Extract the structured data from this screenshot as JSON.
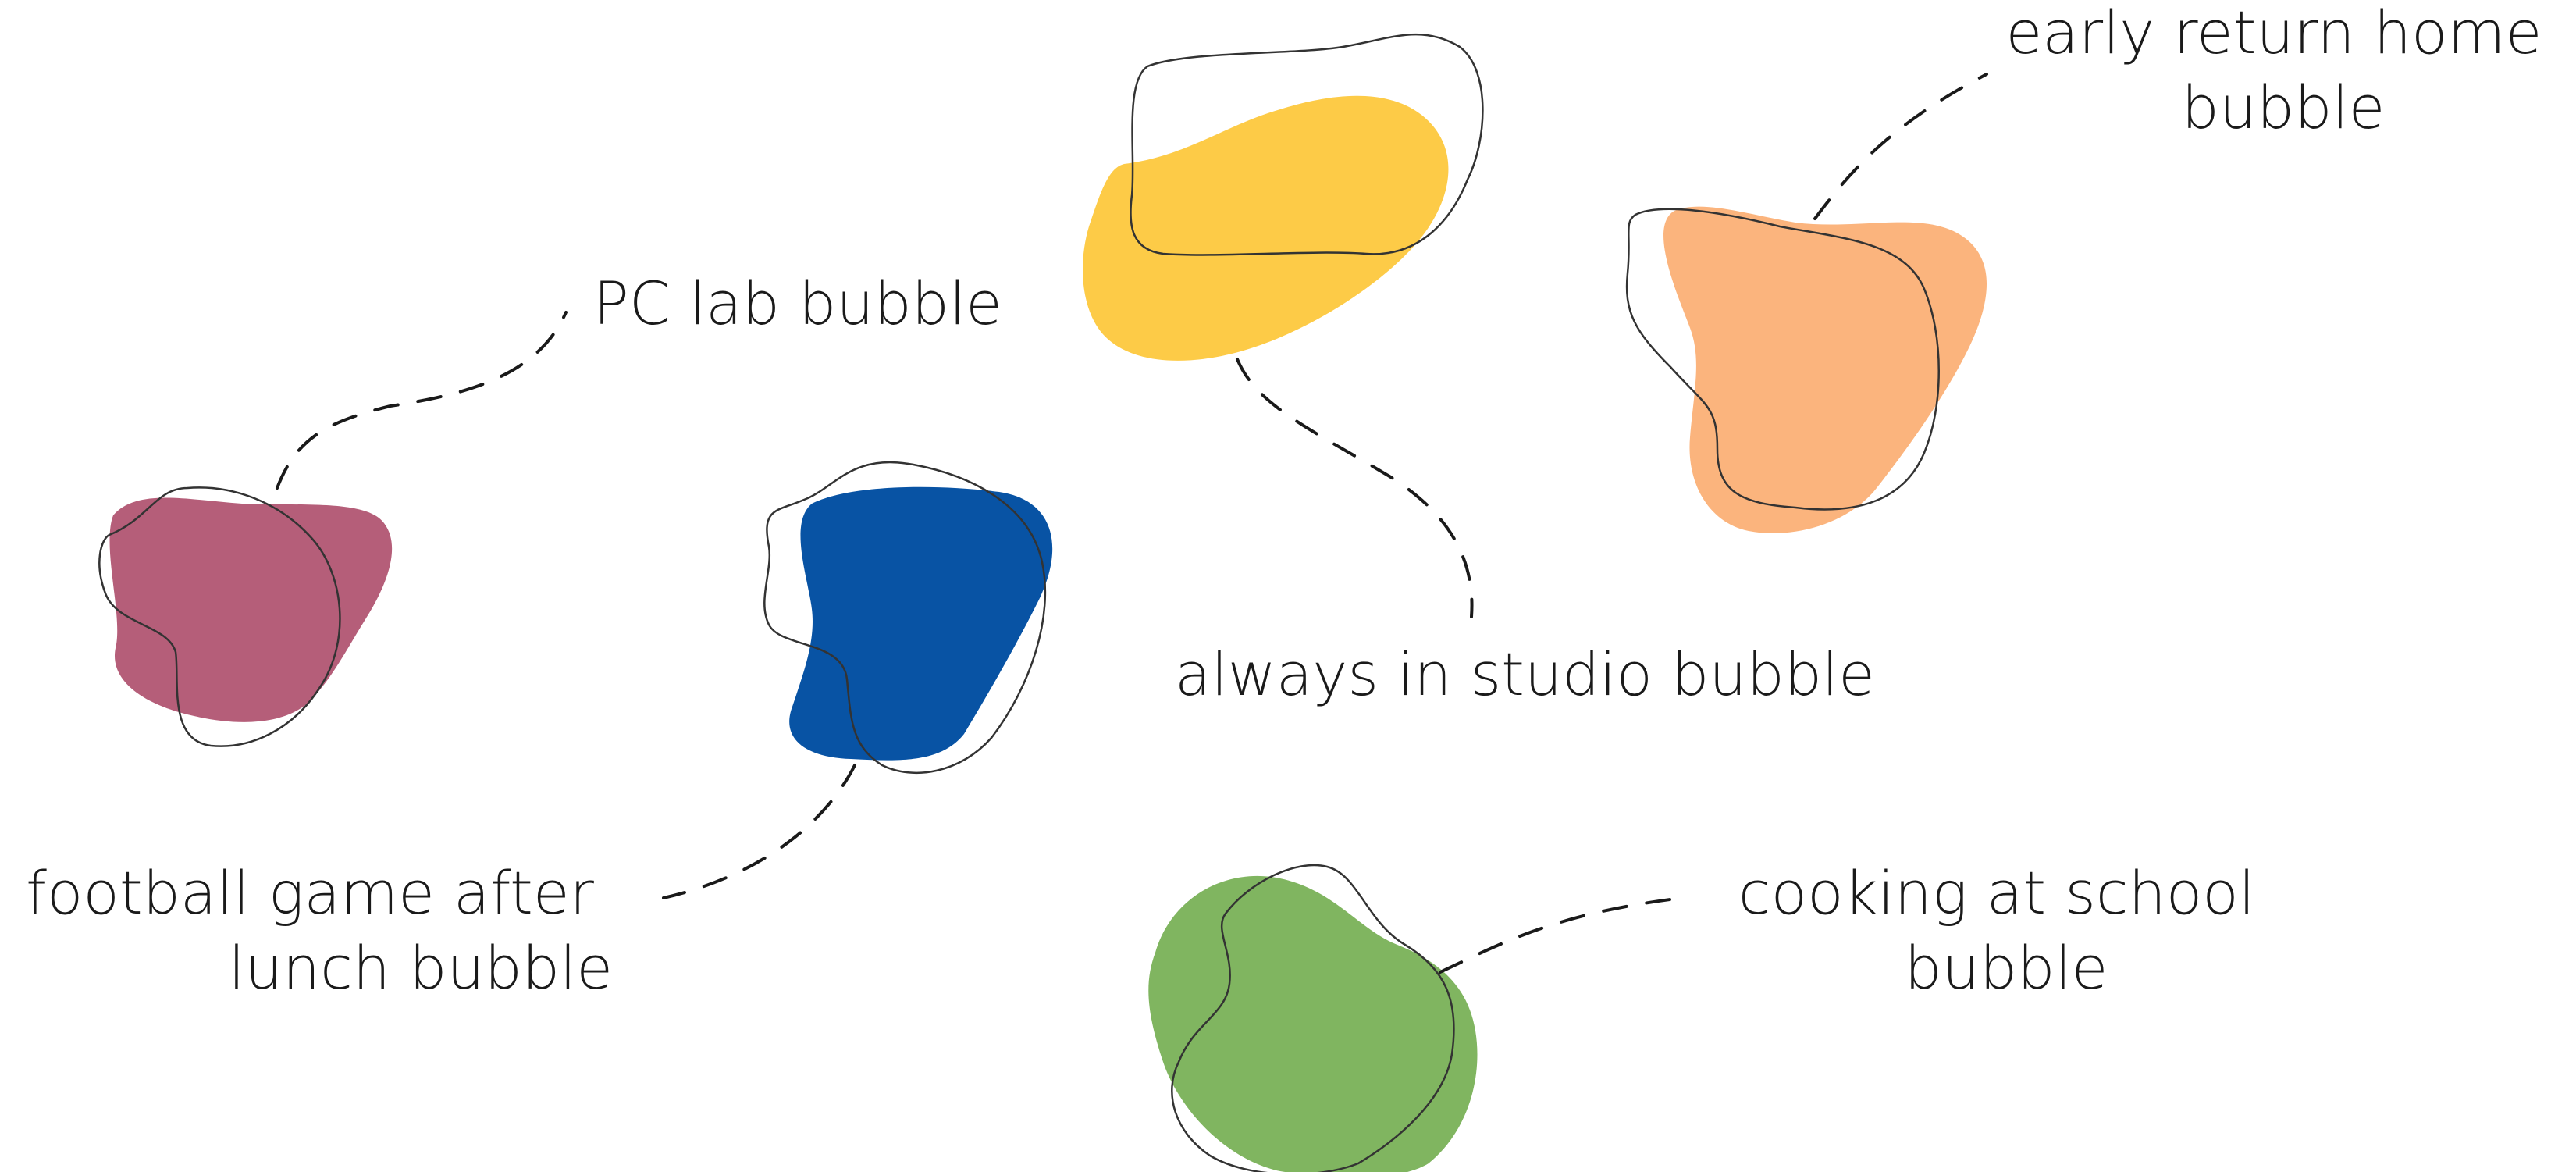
{
  "bubbles": [
    {
      "id": "pc-lab",
      "lines": [
        "PC lab bubble"
      ],
      "color": "#B55E79"
    },
    {
      "id": "football",
      "lines": [
        "football game after",
        "lunch bubble"
      ],
      "color": "#0853A4"
    },
    {
      "id": "studio",
      "lines": [
        "always in studio bubble"
      ],
      "color": "#FDCB47"
    },
    {
      "id": "early-return",
      "lines": [
        "early return home",
        "bubble"
      ],
      "color": "#FBB47D"
    },
    {
      "id": "cooking",
      "lines": [
        "cooking at school",
        "bubble"
      ],
      "color": "#80B560"
    }
  ]
}
